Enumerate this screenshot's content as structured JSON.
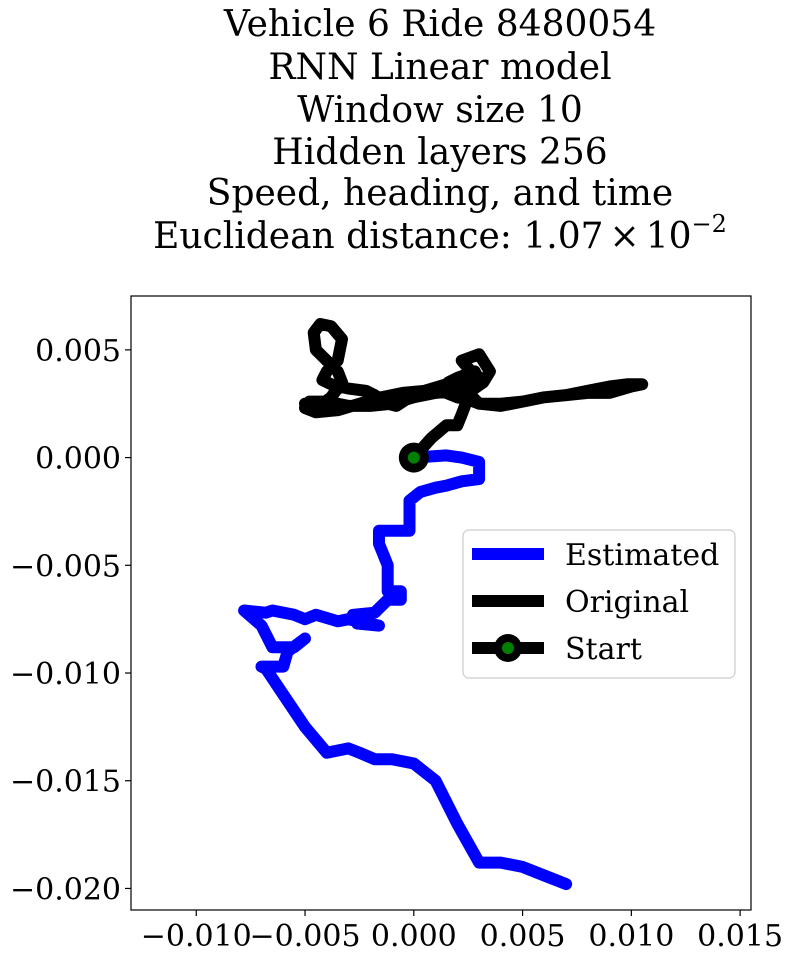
{
  "chart_data": {
    "type": "line",
    "title_lines": [
      "Vehicle 6 Ride 8480054",
      "RNN Linear model",
      "Window size 10",
      "Hidden layers 256",
      "Speed, heading, and time"
    ],
    "title_metric": {
      "prefix": "Euclidean distance: ",
      "mantissa": "1.07",
      "times": "×",
      "base": "10",
      "exponent": "−2"
    },
    "xlabel": "",
    "ylabel": "",
    "xlim": [
      -0.013,
      0.0155
    ],
    "ylim": [
      -0.021,
      0.0075
    ],
    "x_ticks": [
      {
        "value": -0.01,
        "label": "−0.010"
      },
      {
        "value": -0.005,
        "label": "−0.005"
      },
      {
        "value": 0.0,
        "label": "0.000"
      },
      {
        "value": 0.005,
        "label": "0.005"
      },
      {
        "value": 0.01,
        "label": "0.010"
      },
      {
        "value": 0.015,
        "label": "0.015"
      }
    ],
    "y_ticks": [
      {
        "value": 0.005,
        "label": "0.005"
      },
      {
        "value": 0.0,
        "label": "0.000"
      },
      {
        "value": -0.005,
        "label": "−0.005"
      },
      {
        "value": -0.01,
        "label": "−0.010"
      },
      {
        "value": -0.015,
        "label": "−0.015"
      },
      {
        "value": -0.02,
        "label": "−0.020"
      }
    ],
    "grid": false,
    "legend_position": "center-right",
    "series": [
      {
        "name": "Estimated",
        "color": "#0000ff",
        "x": [
          0.0,
          0.0015,
          0.0022,
          0.003,
          0.003,
          0.0022,
          0.0015,
          0.001,
          0.0003,
          -0.0002,
          -0.0002,
          -0.0016,
          -0.0016,
          -0.0012,
          -0.0012,
          -0.0006,
          -0.0006,
          -0.0012,
          -0.0018,
          -0.0028,
          -0.0026,
          -0.0016,
          -0.003,
          -0.0035,
          -0.0045,
          -0.005,
          -0.0055,
          -0.0065,
          -0.0068,
          -0.0078,
          -0.007,
          -0.0065,
          -0.0055,
          -0.005,
          -0.0058,
          -0.006,
          -0.007,
          -0.0068,
          -0.006,
          -0.005,
          -0.004,
          -0.003,
          -0.0025,
          -0.0018,
          -0.001,
          0.0,
          0.001,
          0.002,
          0.003,
          0.004,
          0.005,
          0.006,
          0.007
        ],
        "y": [
          0.0,
          0.0001,
          0.0,
          -0.0002,
          -0.001,
          -0.0011,
          -0.0013,
          -0.0014,
          -0.0016,
          -0.002,
          -0.0034,
          -0.0034,
          -0.004,
          -0.005,
          -0.0062,
          -0.0062,
          -0.0066,
          -0.0066,
          -0.0072,
          -0.0073,
          -0.0077,
          -0.0078,
          -0.0075,
          -0.0076,
          -0.0073,
          -0.0075,
          -0.0073,
          -0.0071,
          -0.0072,
          -0.0071,
          -0.0078,
          -0.0088,
          -0.0088,
          -0.0084,
          -0.009,
          -0.0097,
          -0.0097,
          -0.0098,
          -0.011,
          -0.0125,
          -0.0137,
          -0.0135,
          -0.0137,
          -0.014,
          -0.014,
          -0.0142,
          -0.015,
          -0.017,
          -0.0188,
          -0.0188,
          -0.019,
          -0.0194,
          -0.0198
        ]
      },
      {
        "name": "Original",
        "color": "#000000",
        "x": [
          0.0,
          0.0008,
          0.0015,
          0.002,
          0.0022,
          0.0025,
          0.003,
          0.0028,
          0.002,
          0.0016,
          0.0015,
          0.0005,
          -0.0005,
          -0.0015,
          -0.0025,
          -0.0035,
          -0.0045,
          -0.005,
          -0.0048,
          -0.004,
          -0.003,
          -0.002,
          -0.001,
          0.0,
          0.001,
          0.002,
          0.0025,
          0.0028,
          0.0022,
          0.003,
          0.0035,
          0.0032,
          0.0025,
          0.003,
          0.004,
          0.005,
          0.006,
          0.007,
          0.008,
          0.009,
          0.01,
          0.0105,
          0.0098,
          0.009,
          0.008,
          0.007,
          0.006,
          0.005,
          0.004,
          0.003,
          0.0025,
          0.002,
          0.0015,
          0.001,
          0.0003,
          -0.0002,
          -0.0005,
          -0.0008,
          -0.0012,
          -0.0018,
          -0.0022,
          -0.003,
          -0.0038,
          -0.0042,
          -0.004,
          -0.0035,
          -0.0033,
          -0.0038,
          -0.0043,
          -0.0046,
          -0.0045,
          -0.004,
          -0.0035,
          -0.0033,
          -0.0038,
          -0.0042,
          -0.0046,
          -0.005
        ],
        "y": [
          0.0,
          0.0009,
          0.0015,
          0.0015,
          0.002,
          0.0028,
          0.0036,
          0.004,
          0.0037,
          0.0035,
          0.0034,
          0.0031,
          0.003,
          0.0028,
          0.0025,
          0.0022,
          0.0021,
          0.0023,
          0.0026,
          0.0026,
          0.0024,
          0.0024,
          0.0025,
          0.0028,
          0.003,
          0.0031,
          0.0035,
          0.0038,
          0.0045,
          0.0048,
          0.004,
          0.0035,
          0.003,
          0.0025,
          0.0024,
          0.0026,
          0.0028,
          0.0029,
          0.003,
          0.003,
          0.0033,
          0.0034,
          0.0034,
          0.0033,
          0.0031,
          0.0029,
          0.0028,
          0.0026,
          0.0025,
          0.0025,
          0.0027,
          0.0028,
          0.003,
          0.0031,
          0.0029,
          0.0028,
          0.0026,
          0.0024,
          0.0025,
          0.0029,
          0.0031,
          0.0032,
          0.0034,
          0.0036,
          0.004,
          0.0045,
          0.0055,
          0.0061,
          0.0062,
          0.0058,
          0.005,
          0.0045,
          0.004,
          0.0035,
          0.0028,
          0.0025,
          0.0024,
          0.0025
        ]
      }
    ],
    "start_point": {
      "name": "Start",
      "x": 0.0,
      "y": 0.0,
      "edge_color": "#000000",
      "face_color": "#008000"
    },
    "legend": [
      {
        "label": "Estimated",
        "color": "#0000ff",
        "marker": false
      },
      {
        "label": "Original",
        "color": "#000000",
        "marker": false
      },
      {
        "label": "Start",
        "color": "#000000",
        "marker": true,
        "marker_face": "#008000"
      }
    ]
  }
}
